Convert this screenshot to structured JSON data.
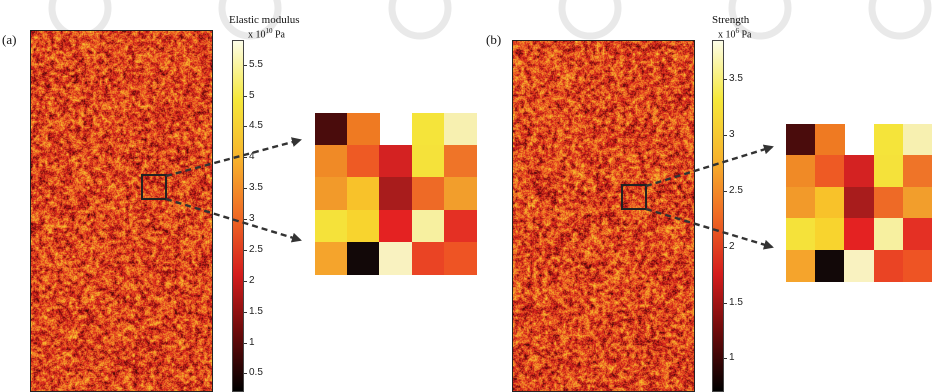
{
  "panels": [
    {
      "label": "(a)",
      "colorbar_title": "Elastic modulus",
      "colorbar_scale": "x 10",
      "colorbar_exp": "10",
      "colorbar_unit": " Pa",
      "ticks": [
        "5.5",
        "5",
        "4.5",
        "4",
        "3.5",
        "3",
        "2.5",
        "2",
        "1.5",
        "1",
        "0.5"
      ],
      "tick_values": [
        5.5,
        5,
        4.5,
        4,
        3.5,
        3,
        2.5,
        2,
        1.5,
        1,
        0.5
      ],
      "range": [
        0.2,
        5.9
      ],
      "zoom_cells": [
        [
          "#4a0c0c",
          "#ef7a22",
          null,
          "#f5e43a",
          "#f7f0b0"
        ],
        [
          "#f08a26",
          "#ee5a24",
          "#d42222",
          "#f5e23a",
          "#ef7428"
        ],
        [
          "#f29a2a",
          "#f8c22a",
          "#a81c1c",
          "#ee6a26",
          "#f29e2c"
        ],
        [
          "#f5e23a",
          "#f8d42e",
          "#e42222",
          "#f7f0a0",
          "#e43024"
        ],
        [
          "#f5a42c",
          "#120808",
          "#f9f2c0",
          "#ea4424",
          "#ee5424"
        ]
      ]
    },
    {
      "label": "(b)",
      "colorbar_title": "Strength",
      "colorbar_scale": "x 10",
      "colorbar_exp": "6",
      "colorbar_unit": " Pa",
      "ticks": [
        "3.5",
        "3",
        "2.5",
        "2",
        "1.5",
        "1"
      ],
      "tick_values": [
        3.5,
        3,
        2.5,
        2,
        1.5,
        1
      ],
      "range": [
        0.7,
        3.85
      ],
      "zoom_cells": [
        [
          "#4a0c0c",
          "#ef7a22",
          null,
          "#f5e43a",
          "#f7f0b0"
        ],
        [
          "#f08a26",
          "#ee5a24",
          "#d42222",
          "#f5e23a",
          "#ef7428"
        ],
        [
          "#f29a2a",
          "#f8c22a",
          "#a81c1c",
          "#ee6a26",
          "#f29e2c"
        ],
        [
          "#f5e23a",
          "#f8d42e",
          "#e42222",
          "#f7f0a0",
          "#e43024"
        ],
        [
          "#f5a42c",
          "#120808",
          "#f9f2c0",
          "#ea4424",
          "#ee5424"
        ]
      ]
    }
  ],
  "colors": {
    "colormap": [
      "#000000",
      "#6a0a0a",
      "#d41c1c",
      "#ef6a24",
      "#f7b42c",
      "#f5e83a",
      "#fdfde8"
    ],
    "arrow": "#333333",
    "outline": "#222222"
  }
}
